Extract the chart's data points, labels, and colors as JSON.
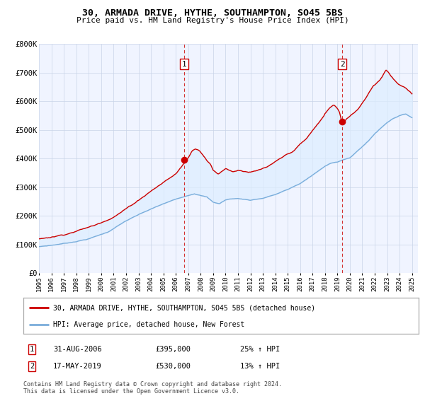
{
  "title": "30, ARMADA DRIVE, HYTHE, SOUTHAMPTON, SO45 5BS",
  "subtitle": "Price paid vs. HM Land Registry's House Price Index (HPI)",
  "legend_label_red": "30, ARMADA DRIVE, HYTHE, SOUTHAMPTON, SO45 5BS (detached house)",
  "legend_label_blue": "HPI: Average price, detached house, New Forest",
  "annotation1_label": "1",
  "annotation1_date": "31-AUG-2006",
  "annotation1_price": "£395,000",
  "annotation1_hpi": "25% ↑ HPI",
  "annotation2_label": "2",
  "annotation2_date": "17-MAY-2019",
  "annotation2_price": "£530,000",
  "annotation2_hpi": "13% ↑ HPI",
  "footer": "Contains HM Land Registry data © Crown copyright and database right 2024.\nThis data is licensed under the Open Government Licence v3.0.",
  "vline1_x": 2006.67,
  "vline2_x": 2019.38,
  "dot1_x": 2006.67,
  "dot1_y": 395000,
  "dot2_x": 2019.38,
  "dot2_y": 530000,
  "ylim": [
    0,
    800000
  ],
  "xlim": [
    1995.0,
    2025.5
  ],
  "red_color": "#cc0000",
  "blue_color": "#7aaddb",
  "fill_color": "#ddeeff",
  "vline_color": "#cc0000",
  "background_color": "#f0f4ff"
}
